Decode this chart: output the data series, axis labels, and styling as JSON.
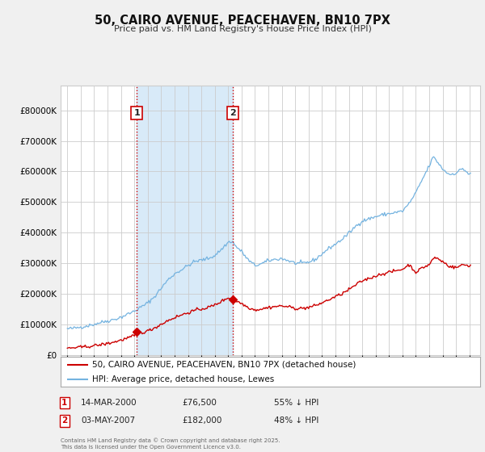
{
  "title": "50, CAIRO AVENUE, PEACEHAVEN, BN10 7PX",
  "subtitle": "Price paid vs. HM Land Registry's House Price Index (HPI)",
  "legend_label_red": "50, CAIRO AVENUE, PEACEHAVEN, BN10 7PX (detached house)",
  "legend_label_blue": "HPI: Average price, detached house, Lewes",
  "annotation1_date": "14-MAR-2000",
  "annotation1_price": "£76,500",
  "annotation1_note": "55% ↓ HPI",
  "annotation2_date": "03-MAY-2007",
  "annotation2_price": "£182,000",
  "annotation2_note": "48% ↓ HPI",
  "footnote": "Contains HM Land Registry data © Crown copyright and database right 2025.\nThis data is licensed under the Open Government Licence v3.0.",
  "ylim_min": 0,
  "ylim_max": 880000,
  "xlim_min": 1994.5,
  "xlim_max": 2025.8,
  "bg_color": "#f0f0f0",
  "plot_bg_color": "#ffffff",
  "red_color": "#cc0000",
  "blue_color": "#74b3e0",
  "shade_color": "#d8eaf8",
  "grid_color": "#cccccc",
  "vline_color": "#cc0000",
  "ann_box_color": "#cc0000",
  "ann_text_color": "#222222",
  "sale1_x": 2000.19,
  "sale1_y": 76500,
  "sale2_x": 2007.34,
  "sale2_y": 182000,
  "yticks": [
    0,
    100000,
    200000,
    300000,
    400000,
    500000,
    600000,
    700000,
    800000
  ],
  "xtick_years": [
    1995,
    1996,
    1997,
    1998,
    1999,
    2000,
    2001,
    2002,
    2003,
    2004,
    2005,
    2006,
    2007,
    2008,
    2009,
    2010,
    2011,
    2012,
    2013,
    2014,
    2015,
    2016,
    2017,
    2018,
    2019,
    2020,
    2021,
    2022,
    2023,
    2024,
    2025
  ]
}
